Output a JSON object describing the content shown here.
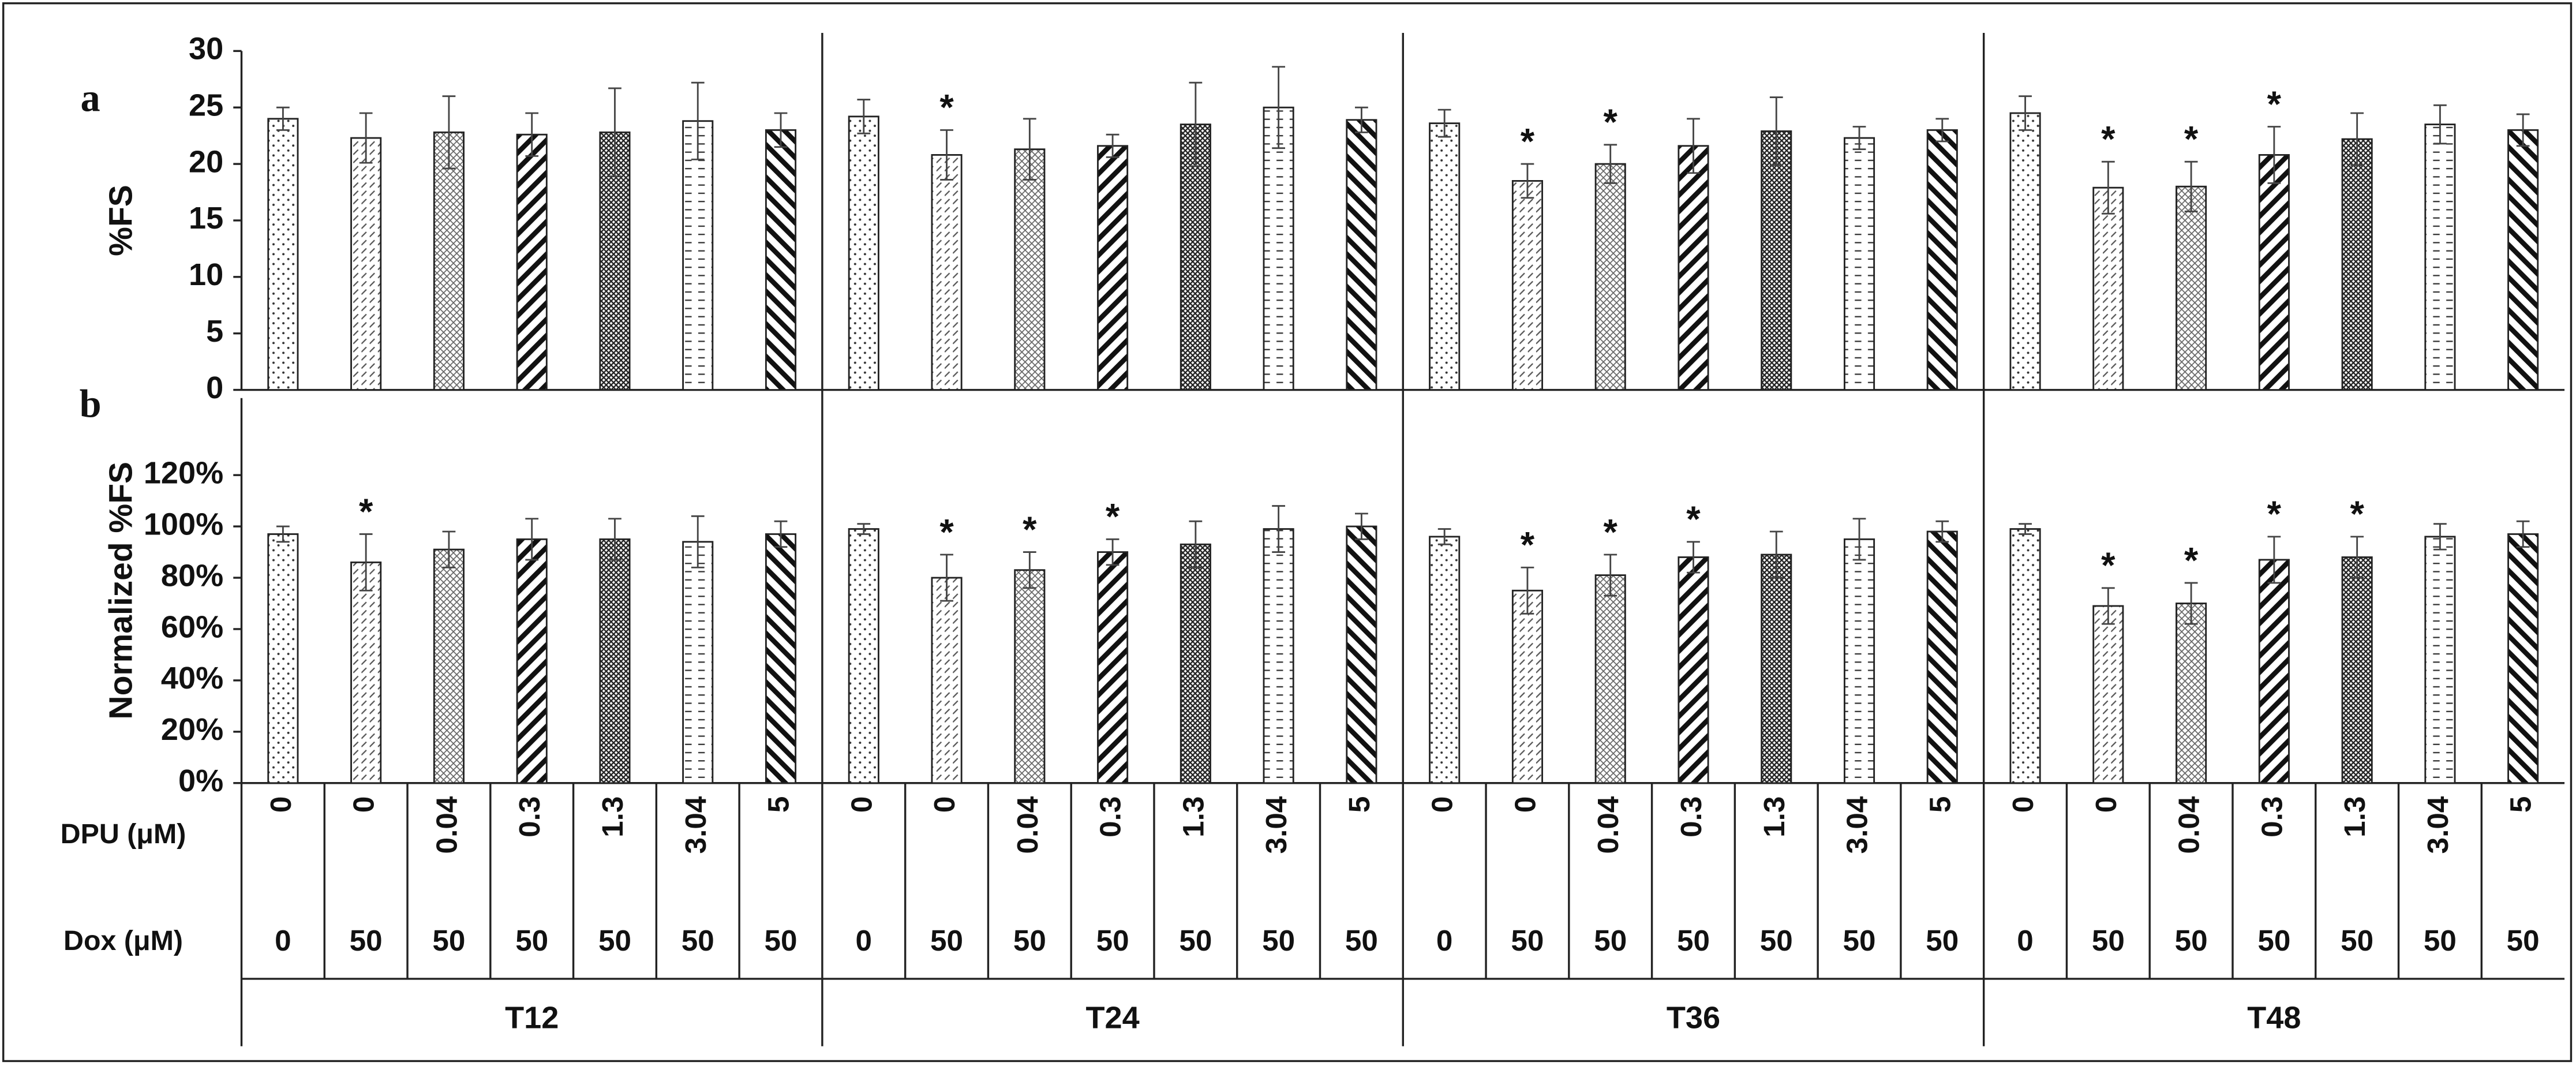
{
  "chart_data": {
    "type": "bar",
    "groups": [
      "T12",
      "T24",
      "T36",
      "T48"
    ],
    "row_labels": [
      "DPU (μM)",
      "Dox (μM)"
    ],
    "dpu": [
      0,
      0,
      0.04,
      0.3,
      1.3,
      3.04,
      5
    ],
    "dox": [
      0,
      50,
      50,
      50,
      50,
      50,
      50
    ],
    "panels": [
      {
        "label": "a",
        "ylabel": "%FS",
        "ylim": [
          0,
          30
        ],
        "yticks": [
          0,
          5,
          10,
          15,
          20,
          25,
          30
        ],
        "values": [
          [
            24,
            22.3,
            22.8,
            22.6,
            22.8,
            23.8,
            23
          ],
          [
            24.2,
            20.8,
            21.3,
            21.6,
            23.5,
            25,
            23.9
          ],
          [
            23.6,
            18.5,
            20,
            21.6,
            22.9,
            22.3,
            23
          ],
          [
            24.5,
            17.9,
            18,
            20.8,
            22.2,
            23.5,
            23
          ]
        ],
        "errors": [
          [
            1,
            2.2,
            3.2,
            1.9,
            3.9,
            3.4,
            1.5
          ],
          [
            1.5,
            2.2,
            2.7,
            1,
            3.7,
            3.6,
            1.1
          ],
          [
            1.2,
            1.5,
            1.7,
            2.4,
            3,
            1,
            1
          ],
          [
            1.5,
            2.3,
            2.2,
            2.5,
            2.3,
            1.7,
            1.4
          ]
        ],
        "annotations": [
          {
            "text": "*",
            "group": 1,
            "bar": 1
          },
          {
            "text": "*",
            "group": 2,
            "bar": 1
          },
          {
            "text": "*",
            "group": 2,
            "bar": 2
          },
          {
            "text": "*",
            "group": 3,
            "bar": 1
          },
          {
            "text": "*",
            "group": 3,
            "bar": 2
          },
          {
            "text": "*",
            "group": 3,
            "bar": 3
          }
        ]
      },
      {
        "label": "b",
        "ylabel": "Normalized %FS",
        "ylim": [
          0,
          150
        ],
        "yticks": [
          {
            "value": 0,
            "label": "0%"
          },
          {
            "value": 20,
            "label": "20%"
          },
          {
            "value": 40,
            "label": "40%"
          },
          {
            "value": 60,
            "label": "60%"
          },
          {
            "value": 80,
            "label": "80%"
          },
          {
            "value": 100,
            "label": "100%"
          },
          {
            "value": 120,
            "label": "120%"
          }
        ],
        "values": [
          [
            97,
            86,
            91,
            95,
            95,
            94,
            97
          ],
          [
            99,
            80,
            83,
            90,
            93,
            99,
            100
          ],
          [
            96,
            75,
            81,
            88,
            89,
            95,
            98
          ],
          [
            99,
            69,
            70,
            87,
            88,
            96,
            97
          ]
        ],
        "errors": [
          [
            3,
            11,
            7,
            8,
            8,
            10,
            5
          ],
          [
            2,
            9,
            7,
            5,
            9,
            9,
            5
          ],
          [
            3,
            9,
            8,
            6,
            9,
            8,
            4
          ],
          [
            2,
            7,
            8,
            9,
            8,
            5,
            5
          ]
        ],
        "annotations": [
          {
            "text": "*",
            "group": 0,
            "bar": 1
          },
          {
            "text": "*",
            "group": 1,
            "bar": 1
          },
          {
            "text": "*",
            "group": 1,
            "bar": 2
          },
          {
            "text": "*",
            "group": 1,
            "bar": 3
          },
          {
            "text": "*",
            "group": 2,
            "bar": 1
          },
          {
            "text": "*",
            "group": 2,
            "bar": 2
          },
          {
            "text": "*",
            "group": 2,
            "bar": 3
          },
          {
            "text": "*",
            "group": 3,
            "bar": 1
          },
          {
            "text": "*",
            "group": 3,
            "bar": 2
          },
          {
            "text": "*",
            "group": 3,
            "bar": 3
          },
          {
            "text": "*",
            "group": 3,
            "bar": 4
          }
        ]
      }
    ]
  }
}
